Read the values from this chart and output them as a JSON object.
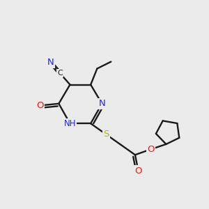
{
  "bg_color": "#ebebeb",
  "bond_color": "#1a1a1a",
  "N_color": "#2020ff",
  "O_color": "#ff1010",
  "S_color": "#b8b800",
  "lw": 1.7,
  "fs": 9.5,
  "figsize": [
    3.0,
    3.0
  ],
  "dpi": 100,
  "xlim": [
    -1,
    11
  ],
  "ylim": [
    -1,
    11
  ]
}
